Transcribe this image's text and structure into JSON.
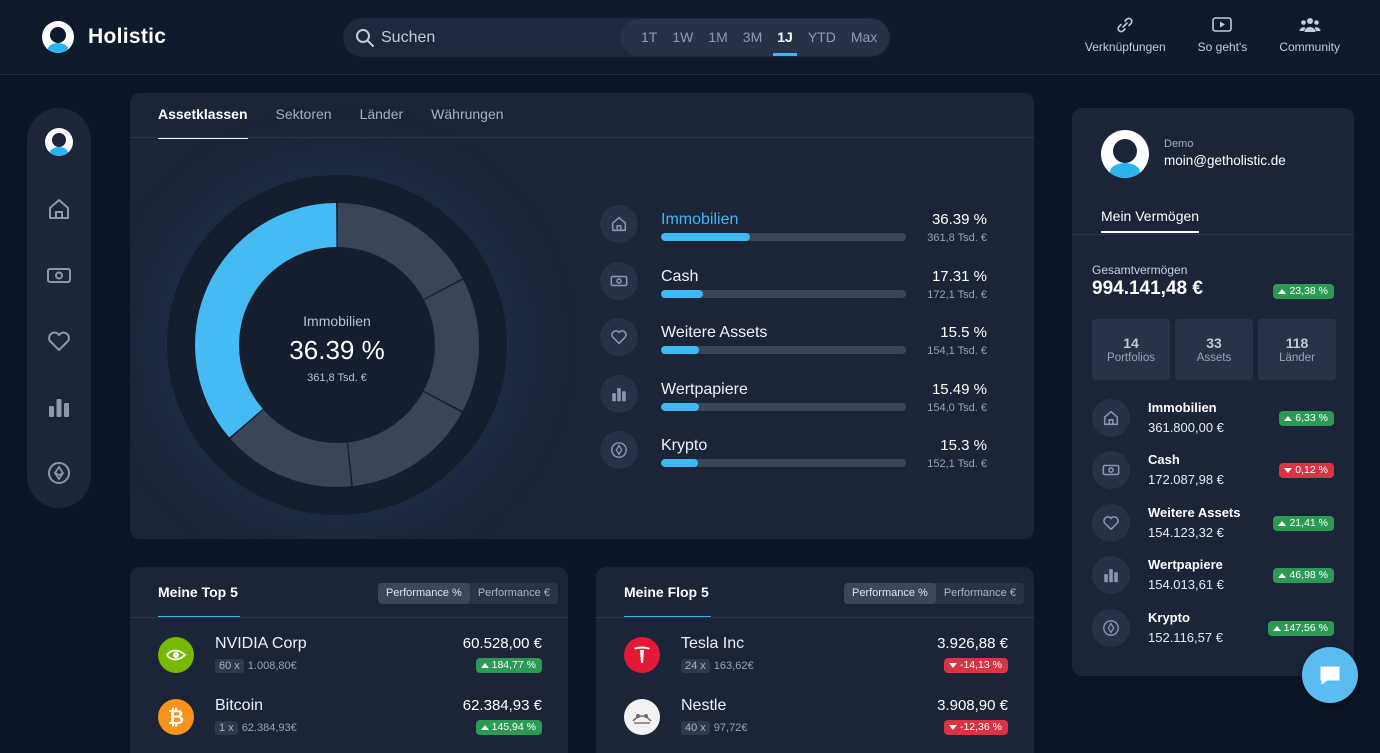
{
  "app": {
    "name": "Holistic"
  },
  "search": {
    "placeholder": "Suchen"
  },
  "ranges": [
    "1T",
    "1W",
    "1M",
    "3M",
    "1J",
    "YTD",
    "Max"
  ],
  "active_range": "1J",
  "topnav": [
    {
      "label": "Verknüpfungen",
      "icon": "link-icon"
    },
    {
      "label": "So geht's",
      "icon": "play-icon"
    },
    {
      "label": "Community",
      "icon": "community-icon"
    }
  ],
  "sidebar": {
    "items": [
      {
        "icon": "home-icon"
      },
      {
        "icon": "cash-icon"
      },
      {
        "icon": "heart-icon"
      },
      {
        "icon": "bar-chart-icon"
      },
      {
        "icon": "crypto-icon"
      }
    ]
  },
  "tabs": [
    "Assetklassen",
    "Sektoren",
    "Länder",
    "Währungen"
  ],
  "donut_center": {
    "label": "Immobilien",
    "value": "36.39 %",
    "amount": "361,8 Tsd. €"
  },
  "chart_data": {
    "type": "pie",
    "categories": [
      "Immobilien",
      "Cash",
      "Weitere Assets",
      "Wertpapiere",
      "Krypto"
    ],
    "values": [
      36.39,
      17.31,
      15.5,
      15.49,
      15.3
    ],
    "highlight": "Immobilien",
    "colors": {
      "highlight": "#45baf3",
      "others": [
        "#3b4557",
        "#3b4557",
        "#3b4557",
        "#3b4557"
      ]
    }
  },
  "allocation": [
    {
      "name": "Immobilien",
      "pct": "36.39 %",
      "amount": "361,8 Tsd. €",
      "share": 0.3639,
      "icon": "home-icon",
      "highlight": true
    },
    {
      "name": "Cash",
      "pct": "17.31 %",
      "amount": "172,1 Tsd. €",
      "share": 0.1731,
      "icon": "cash-icon"
    },
    {
      "name": "Weitere Assets",
      "pct": "15.5 %",
      "amount": "154,1 Tsd. €",
      "share": 0.155,
      "icon": "heart-icon"
    },
    {
      "name": "Wertpapiere",
      "pct": "15.49 %",
      "amount": "154,0 Tsd. €",
      "share": 0.1549,
      "icon": "bar-chart-icon"
    },
    {
      "name": "Krypto",
      "pct": "15.3 %",
      "amount": "152,1 Tsd. €",
      "share": 0.153,
      "icon": "crypto-icon"
    }
  ],
  "top5": {
    "title": "Meine Top 5",
    "toggle": [
      "Performance %",
      "Performance €"
    ],
    "items": [
      {
        "name": "NVIDIA Corp",
        "qty": "60 x",
        "price": "1.008,80€",
        "value": "60.528,00 €",
        "perf": "184,77 %",
        "dir": "up",
        "logo": "nvidia-logo"
      },
      {
        "name": "Bitcoin",
        "qty": "1 x",
        "price": "62.384,93€",
        "value": "62.384,93 €",
        "perf": "145,94 %",
        "dir": "up",
        "logo": "bitcoin-logo"
      }
    ]
  },
  "flop5": {
    "title": "Meine Flop 5",
    "toggle": [
      "Performance %",
      "Performance €"
    ],
    "items": [
      {
        "name": "Tesla Inc",
        "qty": "24 x",
        "price": "163,62€",
        "value": "3.926,88 €",
        "perf": "-14,13 %",
        "dir": "down",
        "logo": "tesla-logo"
      },
      {
        "name": "Nestle",
        "qty": "40 x",
        "price": "97,72€",
        "value": "3.908,90 €",
        "perf": "-12,36 %",
        "dir": "down",
        "logo": "nestle-logo"
      }
    ]
  },
  "profile": {
    "label": "Demo",
    "email": "moin@getholistic.de",
    "tab": "Mein Vermögen",
    "total_label": "Gesamtvermögen",
    "total": "994.141,48 €",
    "total_perf": "23,38 %",
    "stats": [
      {
        "num": "14",
        "label": "Portfolios"
      },
      {
        "num": "33",
        "label": "Assets"
      },
      {
        "num": "118",
        "label": "Länder"
      }
    ],
    "assets": [
      {
        "name": "Immobilien",
        "value": "361.800,00 €",
        "perf": "6,33 %",
        "dir": "up",
        "icon": "home-icon"
      },
      {
        "name": "Cash",
        "value": "172.087,98 €",
        "perf": "0,12 %",
        "dir": "down",
        "icon": "cash-icon"
      },
      {
        "name": "Weitere Assets",
        "value": "154.123,32 €",
        "perf": "21,41 %",
        "dir": "up",
        "icon": "heart-icon"
      },
      {
        "name": "Wertpapiere",
        "value": "154.013,61 €",
        "perf": "46,98 %",
        "dir": "up",
        "icon": "bar-chart-icon"
      },
      {
        "name": "Krypto",
        "value": "152.116,57 €",
        "perf": "147,56 %",
        "dir": "up",
        "icon": "crypto-icon"
      }
    ]
  },
  "colors": {
    "accent": "#3fb9f2",
    "up": "#2a9a55",
    "down": "#d83444",
    "bg": "#0d1627",
    "card": "#1b2537"
  }
}
